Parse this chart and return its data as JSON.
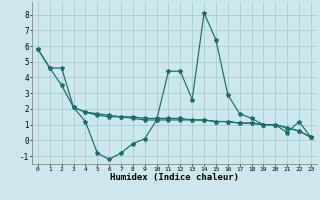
{
  "xlabel": "Humidex (Indice chaleur)",
  "background_color": "#cce8ec",
  "grid_color": "#aacccc",
  "line_color": "#1a6b6b",
  "xlim": [
    -0.5,
    23.5
  ],
  "ylim": [
    -1.5,
    8.8
  ],
  "xticks": [
    0,
    1,
    2,
    3,
    4,
    5,
    6,
    7,
    8,
    9,
    10,
    11,
    12,
    13,
    14,
    15,
    16,
    17,
    18,
    19,
    20,
    21,
    22,
    23
  ],
  "yticks": [
    -1,
    0,
    1,
    2,
    3,
    4,
    5,
    6,
    7,
    8
  ],
  "series": [
    {
      "x": [
        0,
        1,
        2,
        3,
        4,
        5,
        6,
        7,
        8,
        9,
        10,
        11,
        12,
        13,
        14,
        15,
        16,
        17,
        18,
        19,
        20,
        21,
        22,
        23
      ],
      "y": [
        5.8,
        4.6,
        4.6,
        2.1,
        1.2,
        -0.8,
        -1.2,
        -0.8,
        -0.2,
        0.1,
        1.3,
        4.4,
        4.4,
        2.6,
        8.1,
        6.4,
        2.9,
        1.7,
        1.4,
        1.0,
        1.0,
        0.5,
        1.2,
        0.2
      ]
    },
    {
      "x": [
        0,
        1,
        2,
        3,
        4,
        5,
        6,
        7,
        8,
        9,
        10,
        11,
        12,
        13,
        14,
        15,
        16,
        17,
        18,
        19,
        20,
        21,
        22,
        23
      ],
      "y": [
        5.8,
        4.6,
        3.5,
        2.1,
        1.8,
        1.6,
        1.5,
        1.5,
        1.5,
        1.4,
        1.4,
        1.4,
        1.4,
        1.3,
        1.3,
        1.2,
        1.2,
        1.1,
        1.1,
        1.0,
        1.0,
        0.8,
        0.6,
        0.2
      ]
    },
    {
      "x": [
        3,
        4,
        5,
        6,
        7,
        8,
        9,
        10,
        11,
        12,
        13,
        14,
        15,
        16,
        17,
        18,
        19,
        20,
        21,
        22,
        23
      ],
      "y": [
        2.1,
        1.8,
        1.7,
        1.6,
        1.5,
        1.4,
        1.3,
        1.3,
        1.3,
        1.3,
        1.3,
        1.3,
        1.2,
        1.2,
        1.1,
        1.1,
        1.0,
        1.0,
        0.8,
        0.6,
        0.2
      ]
    }
  ]
}
